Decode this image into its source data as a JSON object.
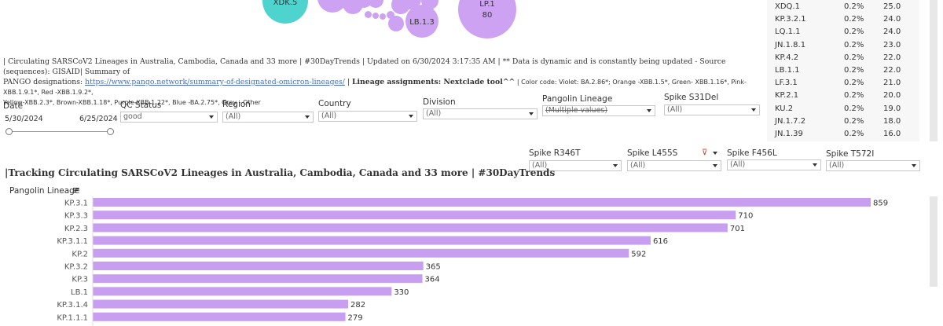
{
  "bubbles": [
    {
      "label": "XDK.5",
      "value": ""
    },
    {
      "label": "LP.1",
      "value": "80"
    },
    {
      "label": "LB.1.3",
      "value": ""
    }
  ],
  "colors": {
    "bar": "#c89ff0",
    "teal": "#4fd3cf",
    "violet": "#c89ff0",
    "bubble_violet": "#cda2f2",
    "link": "#4a6fb5"
  },
  "right_table": [
    {
      "lineage": "XDQ.1",
      "pct": "0.2%",
      "value": "25.0"
    },
    {
      "lineage": "KP.3.2.1",
      "pct": "0.2%",
      "value": "24.0"
    },
    {
      "lineage": "LQ.1.1",
      "pct": "0.2%",
      "value": "24.0"
    },
    {
      "lineage": "JN.1.8.1",
      "pct": "0.2%",
      "value": "23.0"
    },
    {
      "lineage": "KP.4.2",
      "pct": "0.2%",
      "value": "22.0"
    },
    {
      "lineage": "LB.1.1",
      "pct": "0.2%",
      "value": "22.0"
    },
    {
      "lineage": "LF.3.1",
      "pct": "0.2%",
      "value": "21.0"
    },
    {
      "lineage": "KP.2.1",
      "pct": "0.2%",
      "value": "20.0"
    },
    {
      "lineage": "KU.2",
      "pct": "0.2%",
      "value": "19.0"
    },
    {
      "lineage": "JN.1.7.2",
      "pct": "0.2%",
      "value": "18.0"
    },
    {
      "lineage": "JN.1.39",
      "pct": "0.2%",
      "value": "16.0"
    }
  ],
  "header": {
    "line1_text": "| Circulating SARSCoV2 Lineages in Australia, Cambodia, Canada and 33 more | #30DayTrends | Updated on 6/30/2024 3:17:35 AM | ** Data is dynamic and is constantly being updated - Source (sequences): GISAID| Summary of",
    "line2_prefix": "PANGO designations: ",
    "link_text": "https://www.pango.network/summary-of-designated-omicron-lineages/",
    "line2_mid": " | ",
    "bold_text": "Lineage assignments: Nextclade tool^^",
    "line2_small": " | Color code: Violet: BA.2.86*; Orange -XBB.1.5*, Green- XBB.1.16*, Pink-XBB.1.9.1*, Red -XBB.1.9.2*,",
    "line3_small": "Yellow-XBB.2.3*, Brown-XBB.1.18*, Purple-XBB.1.22*, Blue -BA.2.75*, Grey - Other"
  },
  "filters": {
    "date": {
      "label": "Date",
      "start": "5/30/2024",
      "end": "6/25/2024",
      "slider_start_fraction": 0.0,
      "slider_end_fraction": 1.0
    },
    "qc_status": {
      "label": "QC Status",
      "value": "good"
    },
    "region": {
      "label": "Region",
      "value": "(All)"
    },
    "country": {
      "label": "Country",
      "value": "(All)"
    },
    "division": {
      "label": "Division",
      "value": "(All)"
    },
    "pangolin": {
      "label": "Pangolin Lineage",
      "value": "(Multiple values)"
    },
    "spike_s31del": {
      "label": "Spike S31Del",
      "value": "(All)"
    },
    "spike_r346t": {
      "label": "Spike R346T",
      "value": "(All)"
    },
    "spike_l455s": {
      "label": "Spike L455S",
      "value": "(All)"
    },
    "spike_f456l": {
      "label": "Spike F456L",
      "value": "(All)"
    },
    "spike_t572i": {
      "label": "Spike T572I",
      "value": "(All)"
    }
  },
  "chart_title": "|Tracking Circulating SARSCoV2 Lineages in Australia, Cambodia, Canada and 33 more | #30DayTrends",
  "chart_data": {
    "type": "bar",
    "orientation": "horizontal",
    "title": "|Tracking Circulating SARSCoV2 Lineages in Australia, Cambodia, Canada and 33 more | #30DayTrends",
    "ylabel": "Pangolin Lineage",
    "xlabel": "",
    "categories": [
      "KP.3.1",
      "KP.3.3",
      "KP.2.3",
      "KP.3.1.1",
      "KP.2",
      "KP.3.2",
      "KP.3",
      "LB.1",
      "KP.3.1.4",
      "KP.1.1.1"
    ],
    "values": [
      859,
      710,
      701,
      616,
      592,
      365,
      364,
      330,
      282,
      279
    ],
    "xlim": [
      0,
      900
    ],
    "grid": false,
    "legend": "none",
    "data_labels": true
  }
}
